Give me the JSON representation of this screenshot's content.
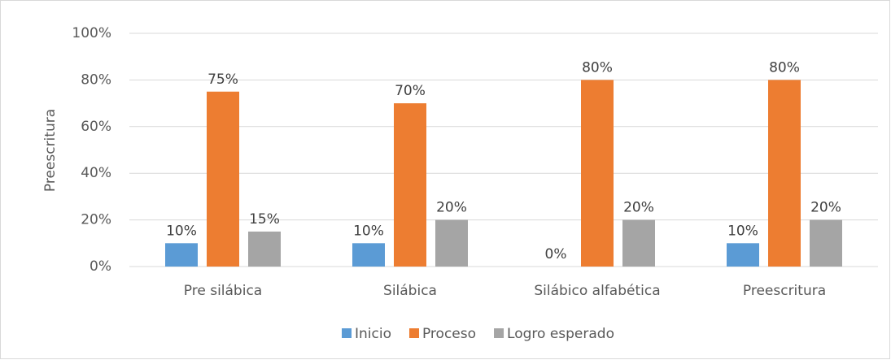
{
  "chart_data": {
    "type": "bar",
    "y_label": "Preescritura",
    "categories": [
      "Pre silábica",
      "Silábica",
      "Silábico alfabética",
      "Preescritura"
    ],
    "series": [
      {
        "name": "Inicio",
        "color": "#5b9bd5",
        "values": [
          10,
          10,
          0,
          10
        ],
        "value_labels": [
          "10%",
          "10%",
          "0%",
          "10%"
        ]
      },
      {
        "name": "Proceso",
        "color": "#ed7d31",
        "values": [
          75,
          70,
          80,
          80
        ],
        "value_labels": [
          "75%",
          "70%",
          "80%",
          "80%"
        ]
      },
      {
        "name": "Logro esperado",
        "color": "#a5a5a5",
        "values": [
          15,
          20,
          20,
          20
        ],
        "value_labels": [
          "15%",
          "20%",
          "20%",
          "20%"
        ]
      }
    ],
    "ylim": [
      0,
      100
    ],
    "yticks": [
      {
        "value": 0,
        "label": "0%"
      },
      {
        "value": 20,
        "label": "20%"
      },
      {
        "value": 40,
        "label": "40%"
      },
      {
        "value": 60,
        "label": "60%"
      },
      {
        "value": 80,
        "label": "80%"
      },
      {
        "value": 100,
        "label": "100%"
      }
    ],
    "grid": true,
    "legend": "bottom"
  }
}
